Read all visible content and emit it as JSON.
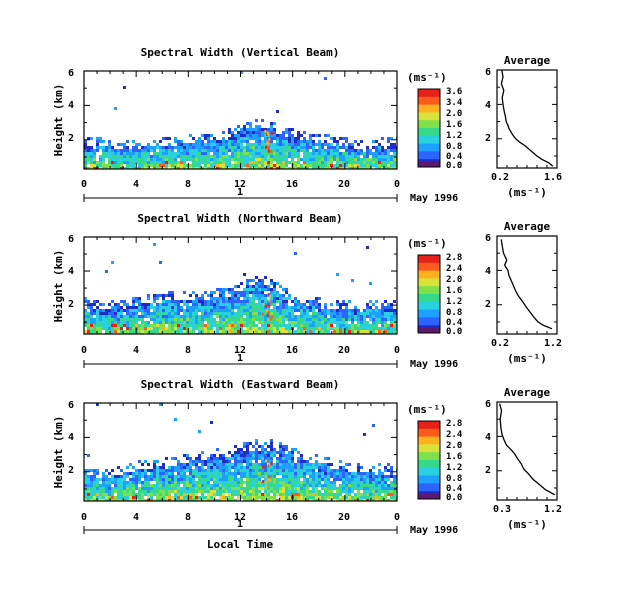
{
  "chart_data": {
    "type": "heatmap",
    "x_tick_labels": [
      "0",
      "4",
      "8",
      "12",
      "16",
      "20",
      "0"
    ],
    "xlim": [
      0,
      24
    ],
    "day_label": "1",
    "date_label": "May 1996",
    "xlabel": "Local Time",
    "colormap": [
      "#5b1a70",
      "#1f2cc8",
      "#2d63ff",
      "#1ea0ff",
      "#28d0e0",
      "#36d88a",
      "#7fe04a",
      "#d8e23a",
      "#ffb020",
      "#ff5a1e",
      "#e8201a"
    ],
    "panels": [
      {
        "title": "Spectral Width (Vertical Beam)",
        "ylabel": "Height (km)",
        "y_tick_labels": [
          "6",
          "4",
          "2"
        ],
        "ylim": [
          0.3,
          6
        ],
        "colorbar_unit": "(ms⁻¹)",
        "colorbar_ticks": [
          "3.6",
          "3.4",
          "2.0",
          "1.6",
          "1.2",
          "0.8",
          "0.4",
          "0.0"
        ],
        "cloud_top_km": [
          1.7,
          1.7,
          1.6,
          1.6,
          1.6,
          1.7,
          1.8,
          1.8,
          1.9,
          2.0,
          2.0,
          2.3,
          2.6,
          2.8,
          2.7,
          2.4,
          2.2,
          2.0,
          1.9,
          1.8,
          1.7,
          1.6,
          1.6,
          1.7
        ],
        "average_profile": {
          "title": "Average",
          "xlabel": "(ms⁻¹)",
          "x_tick_labels": [
            "0.2",
            "1.6"
          ],
          "xlim": [
            0.2,
            1.6
          ],
          "y_tick_labels": [
            "6",
            "4",
            "2"
          ],
          "ylim": [
            0.3,
            6
          ],
          "height_km": [
            0.4,
            0.6,
            0.8,
            1.0,
            1.2,
            1.4,
            1.6,
            1.8,
            2.0,
            2.2,
            2.4,
            2.6,
            2.8,
            3.0,
            3.3,
            3.6,
            4.0,
            4.4,
            4.8,
            5.2,
            5.6,
            6.0
          ],
          "width_ms": [
            1.55,
            1.45,
            1.28,
            1.15,
            1.05,
            0.95,
            0.85,
            0.72,
            0.62,
            0.55,
            0.5,
            0.45,
            0.42,
            0.38,
            0.36,
            0.33,
            0.3,
            0.28,
            0.32,
            0.26,
            0.3,
            0.27
          ]
        }
      },
      {
        "title": "Spectral Width (Northward Beam)",
        "ylabel": "Height (km)",
        "y_tick_labels": [
          "6",
          "4",
          "2"
        ],
        "ylim": [
          0.3,
          6
        ],
        "colorbar_unit": "(ms⁻¹)",
        "colorbar_ticks": [
          "2.8",
          "2.4",
          "2.0",
          "1.6",
          "1.2",
          "0.8",
          "0.4",
          "0.0"
        ],
        "cloud_top_km": [
          2.0,
          1.9,
          1.8,
          1.9,
          2.0,
          2.2,
          2.3,
          2.4,
          2.3,
          2.4,
          2.5,
          2.6,
          3.0,
          3.4,
          3.2,
          2.8,
          2.4,
          2.1,
          2.0,
          1.9,
          1.8,
          1.9,
          1.8,
          1.8
        ],
        "average_profile": {
          "title": "Average",
          "xlabel": "(ms⁻¹)",
          "x_tick_labels": [
            "0.2",
            "1.2"
          ],
          "xlim": [
            0.2,
            1.2
          ],
          "y_tick_labels": [
            "6",
            "4",
            "2"
          ],
          "ylim": [
            0.3,
            6
          ],
          "height_km": [
            0.6,
            0.8,
            1.0,
            1.3,
            1.6,
            1.9,
            2.2,
            2.5,
            2.8,
            3.1,
            3.4,
            3.7,
            4.0,
            4.3,
            4.6,
            5.0,
            5.4,
            5.8
          ],
          "width_ms": [
            1.15,
            1.0,
            0.9,
            0.82,
            0.75,
            0.68,
            0.62,
            0.55,
            0.5,
            0.46,
            0.42,
            0.38,
            0.36,
            0.3,
            0.34,
            0.28,
            0.26,
            0.24
          ]
        }
      },
      {
        "title": "Spectral Width (Eastward Beam)",
        "ylabel": "Height (km)",
        "y_tick_labels": [
          "6",
          "4",
          "2"
        ],
        "ylim": [
          0.3,
          6
        ],
        "colorbar_unit": "(ms⁻¹)",
        "colorbar_ticks": [
          "2.8",
          "2.4",
          "2.0",
          "1.6",
          "1.2",
          "0.8",
          "0.4",
          "0.0"
        ],
        "cloud_top_km": [
          1.9,
          1.8,
          1.8,
          2.0,
          2.2,
          2.3,
          2.4,
          2.5,
          2.7,
          2.8,
          2.9,
          3.0,
          3.2,
          3.4,
          3.5,
          3.3,
          3.0,
          2.7,
          2.5,
          2.3,
          2.2,
          2.0,
          2.0,
          1.9
        ],
        "average_profile": {
          "title": "Average",
          "xlabel": "(ms⁻¹)",
          "x_tick_labels": [
            "0.3",
            "1.2"
          ],
          "xlim": [
            0.3,
            1.2
          ],
          "y_tick_labels": [
            "6",
            "4",
            "2"
          ],
          "ylim": [
            0.3,
            6
          ],
          "height_km": [
            0.6,
            0.9,
            1.2,
            1.5,
            1.8,
            2.1,
            2.4,
            2.7,
            3.0,
            3.2,
            3.5,
            3.8,
            4.1,
            4.5,
            5.0,
            5.5,
            5.9
          ],
          "width_ms": [
            1.2,
            1.05,
            0.95,
            0.85,
            0.78,
            0.7,
            0.66,
            0.6,
            0.55,
            0.5,
            0.42,
            0.38,
            0.35,
            0.33,
            0.32,
            0.34,
            0.31
          ]
        }
      }
    ]
  }
}
